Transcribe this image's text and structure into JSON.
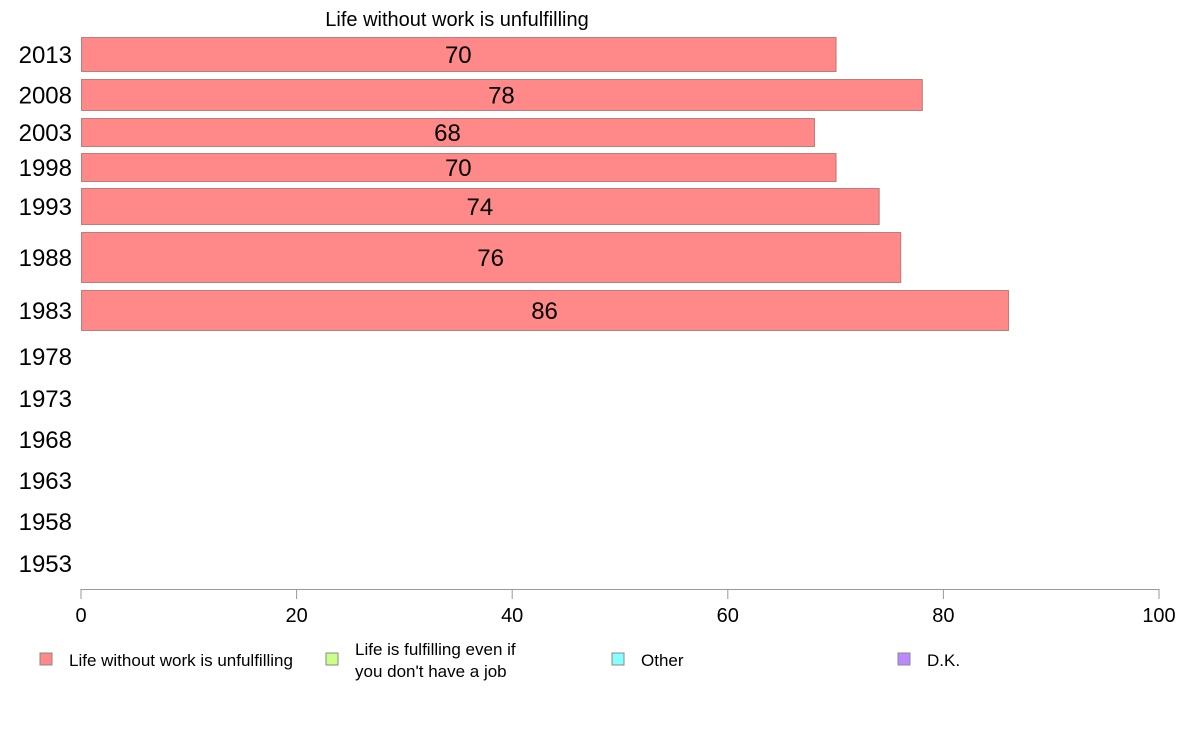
{
  "chart_data": {
    "type": "bar",
    "orientation": "horizontal",
    "title": "Life without work is unfulfilling",
    "xlabel": "",
    "ylabel": "",
    "xlim": [
      0,
      100
    ],
    "x_ticks": [
      "0",
      "20",
      "40",
      "60",
      "80",
      "100"
    ],
    "grid": false,
    "categories": [
      "2013",
      "2008",
      "2003",
      "1998",
      "1993",
      "1988",
      "1983",
      "1978",
      "1973",
      "1968",
      "1963",
      "1958",
      "1953"
    ],
    "series": [
      {
        "name": "Life without work is unfulfilling",
        "color": "#ff8888",
        "values": [
          70,
          78,
          68,
          70,
          74,
          76,
          86,
          null,
          null,
          null,
          null,
          null,
          null
        ],
        "labels": [
          "70",
          "78",
          "68",
          "70",
          "74",
          "76",
          "86",
          "",
          "",
          "",
          "",
          "",
          ""
        ]
      }
    ],
    "legend": {
      "placement": "bottom",
      "items": [
        {
          "label": "Life without work is unfulfilling",
          "color": "#ff8888"
        },
        {
          "label": "Life is fulfilling even if you don't have a job",
          "line1": "Life is fulfilling even if",
          "line2": "you don't have a job",
          "color": "#ccff88"
        },
        {
          "label": "Other",
          "color": "#88ffff"
        },
        {
          "label": "D.K.",
          "color": "#bb88ff"
        }
      ]
    }
  }
}
